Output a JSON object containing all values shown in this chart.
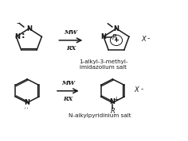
{
  "bg_color": "#ffffff",
  "text_color": "#1a1a1a",
  "arrow_color": "#1a1a1a",
  "fig_width": 2.36,
  "fig_height": 1.78,
  "dpi": 100,
  "reaction1": {
    "arrow_label_top": "MW",
    "arrow_label_bot": "RX",
    "product_label": "1-alkyl-3-methyl-\nimidazolium salt"
  },
  "reaction2": {
    "arrow_label_top": "MW",
    "arrow_label_bot": "RX",
    "product_label": "N-alkylpyridinium salt"
  }
}
